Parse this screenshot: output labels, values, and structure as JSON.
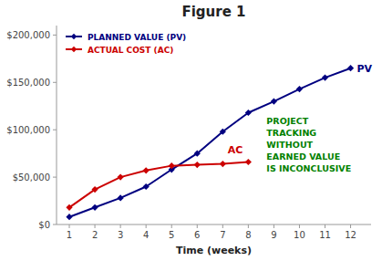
{
  "chart_data": {
    "type": "line",
    "title": "Figure 1",
    "x_label": "Time (weeks)",
    "x": [
      1,
      2,
      3,
      4,
      5,
      6,
      7,
      8,
      9,
      10,
      11,
      12
    ],
    "series": [
      {
        "name": "PLANNED VALUE (PV)",
        "color": "#000080",
        "marker": "diamond",
        "values": [
          8000,
          18000,
          28000,
          40000,
          58000,
          75000,
          98000,
          118000,
          130000,
          143000,
          155000,
          165000
        ]
      },
      {
        "name": "ACTUAL COST (AC)",
        "color": "#CC0000",
        "marker": "diamond",
        "values": [
          18000,
          37000,
          50000,
          57000,
          62000,
          63000,
          64000,
          66000,
          null,
          null,
          null,
          null
        ]
      }
    ],
    "annotations": [
      {
        "text": "PV",
        "color": "#000080"
      },
      {
        "text": "AC",
        "color": "#CC0000"
      },
      {
        "text": "PROJECT\nTRACKING\nWITHOUT\nEARNED VALUE\nIS INCONCLUSIVE",
        "color": "#008000"
      }
    ],
    "xlim": [
      0.5,
      12.8
    ],
    "ylim": [
      0,
      210000
    ],
    "xticks": [
      1,
      2,
      3,
      4,
      5,
      6,
      7,
      8,
      9,
      10,
      11,
      12
    ],
    "yticks": [
      {
        "value": 0,
        "label": "$0"
      },
      {
        "value": 50000,
        "label": "$50,000"
      },
      {
        "value": 100000,
        "label": "$100,000"
      },
      {
        "value": 150000,
        "label": "$150,000"
      },
      {
        "value": 200000,
        "label": "$200,000"
      }
    ],
    "grid": false,
    "legend": "upper-left"
  }
}
